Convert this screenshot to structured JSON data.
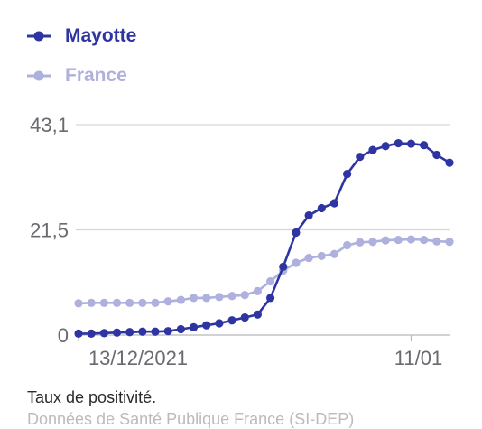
{
  "legend": [
    {
      "name": "Mayotte",
      "color": "#2e35a3"
    },
    {
      "name": "France",
      "color": "#aeb0dd"
    }
  ],
  "caption": "Taux de positivité.",
  "caption_partial": "Données de Santé Publique France (SI-DEP)",
  "chart_data": {
    "type": "line",
    "title": "",
    "xlabel": "",
    "ylabel": "",
    "x_tick_labels": [
      "13/12/2021",
      "11/01"
    ],
    "y_tick_labels": [
      "0",
      "21,5",
      "43,1"
    ],
    "ylim": [
      0,
      43.1
    ],
    "grid": true,
    "legend_position": "top-left",
    "series": [
      {
        "name": "Mayotte",
        "color": "#2e35a3",
        "values": [
          0.3,
          0.3,
          0.4,
          0.5,
          0.6,
          0.7,
          0.7,
          0.8,
          1.2,
          1.6,
          2.0,
          2.4,
          3.0,
          3.6,
          4.2,
          7.6,
          14.0,
          21.0,
          24.5,
          26.0,
          27.0,
          33.0,
          36.5,
          37.9,
          38.7,
          39.3,
          39.2,
          38.9,
          36.9,
          35.3
        ]
      },
      {
        "name": "France",
        "color": "#aeb0dd",
        "values": [
          6.5,
          6.6,
          6.6,
          6.6,
          6.6,
          6.6,
          6.6,
          6.9,
          7.2,
          7.6,
          7.6,
          7.8,
          8.0,
          8.2,
          9.0,
          11.0,
          13.2,
          14.8,
          15.8,
          16.2,
          16.6,
          18.4,
          19.0,
          19.1,
          19.4,
          19.5,
          19.6,
          19.5,
          19.2,
          19.1
        ]
      }
    ]
  }
}
